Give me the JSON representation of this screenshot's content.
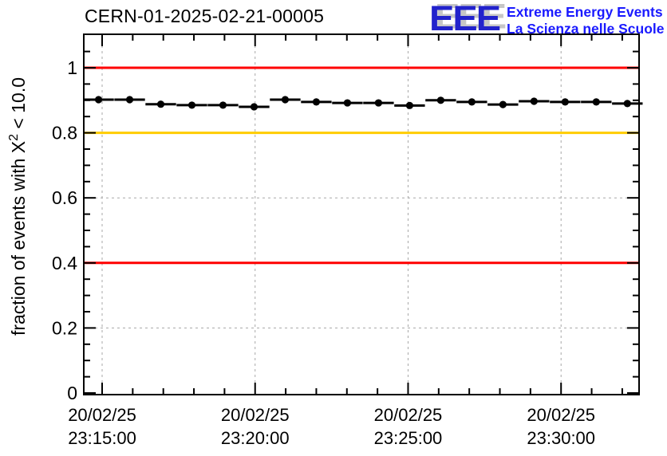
{
  "header": {
    "title": "CERN-01-2025-02-21-00005",
    "logo": {
      "acronym": "EEE",
      "line1": "Extreme Energy Events",
      "line2": "La Scienza nelle Scuole"
    }
  },
  "colors": {
    "background": "#ffffff",
    "axis": "#000000",
    "grid": "#a8a8a8",
    "marker": "#000000",
    "reference_red": "#ff0000",
    "reference_orange": "#ffcc00",
    "logo_letters": "#2222cc",
    "logo_text": "#1a1aff"
  },
  "chart_data": {
    "type": "scatter",
    "title": "CERN-01-2025-02-21-00005",
    "ylabel": {
      "prefix": "fraction of events with X",
      "superscript": "2",
      "suffix": " < 10.0",
      "text": "fraction of events with X2 < 10.0"
    },
    "x_axis": {
      "date": "20/02/25",
      "domain": [
        "23:14:24",
        "23:32:33"
      ],
      "minor_step_seconds": 60,
      "grid": true,
      "major_ticks": [
        {
          "time": "23:15:00",
          "label_date": "20/02/25",
          "label_time": "23:15:00"
        },
        {
          "time": "23:20:00",
          "label_date": "20/02/25",
          "label_time": "23:20:00"
        },
        {
          "time": "23:25:00",
          "label_date": "20/02/25",
          "label_time": "23:25:00"
        },
        {
          "time": "23:30:00",
          "label_date": "20/02/25",
          "label_time": "23:30:00"
        }
      ]
    },
    "y_axis": {
      "range": [
        0,
        1.103
      ],
      "minor_step": 0.05,
      "grid": true,
      "major_ticks": [
        {
          "value": 1,
          "label": "1"
        },
        {
          "value": 0.8,
          "label": "0.8"
        },
        {
          "value": 0.6,
          "label": "0.6"
        },
        {
          "value": 0.4,
          "label": "0.4"
        },
        {
          "value": 0.2,
          "label": "0.2"
        },
        {
          "value": 0,
          "label": "0"
        }
      ]
    },
    "reference_lines": [
      {
        "value": 1.0,
        "color": "#ff0000"
      },
      {
        "value": 0.8,
        "color": "#ffcc00"
      },
      {
        "value": 0.4,
        "color": "#ff0000"
      }
    ],
    "series": [
      {
        "marker": "filled-circle",
        "color": "#000000",
        "x_error_seconds": 30,
        "points": [
          {
            "time": "23:14:53",
            "value": 0.902
          },
          {
            "time": "23:15:54",
            "value": 0.902
          },
          {
            "time": "23:16:55",
            "value": 0.888
          },
          {
            "time": "23:17:56",
            "value": 0.885
          },
          {
            "time": "23:18:57",
            "value": 0.885
          },
          {
            "time": "23:19:58",
            "value": 0.88
          },
          {
            "time": "23:20:59",
            "value": 0.902
          },
          {
            "time": "23:22:00",
            "value": 0.895
          },
          {
            "time": "23:23:01",
            "value": 0.892
          },
          {
            "time": "23:24:02",
            "value": 0.892
          },
          {
            "time": "23:25:03",
            "value": 0.884
          },
          {
            "time": "23:26:04",
            "value": 0.9
          },
          {
            "time": "23:27:05",
            "value": 0.895
          },
          {
            "time": "23:28:06",
            "value": 0.887
          },
          {
            "time": "23:29:07",
            "value": 0.897
          },
          {
            "time": "23:30:08",
            "value": 0.895
          },
          {
            "time": "23:31:09",
            "value": 0.895
          },
          {
            "time": "23:32:10",
            "value": 0.89
          }
        ]
      }
    ]
  }
}
